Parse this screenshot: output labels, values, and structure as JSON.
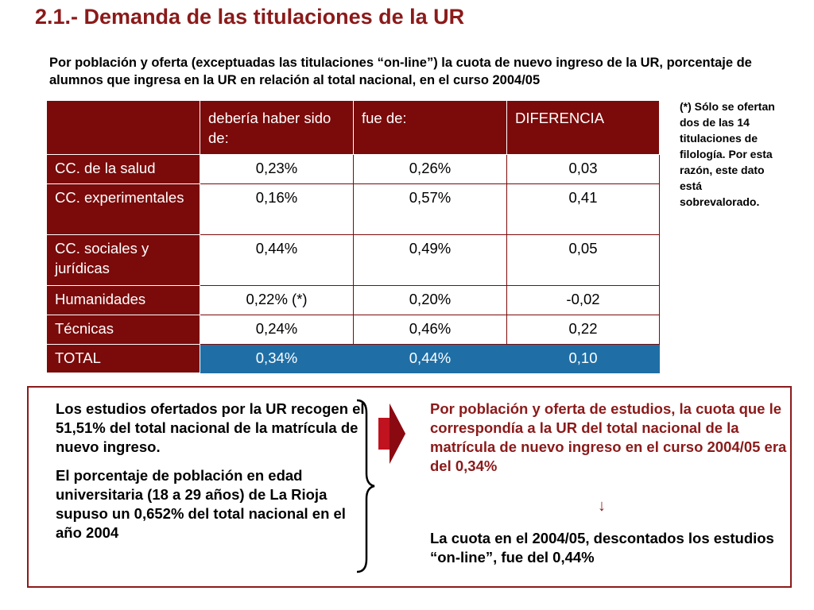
{
  "title": "2.1.- Demanda de las titulaciones de la UR",
  "intro": "Por población y oferta (exceptuadas las titulaciones “on-line”) la cuota de nuevo ingreso de la UR, porcentaje de alumnos que ingresa en la UR en relación al total nacional, en el curso 2004/05",
  "table": {
    "headers": [
      "",
      "debería haber sido de:",
      "fue de:",
      "DIFERENCIA"
    ],
    "rows": [
      {
        "label": "CC. de la salud",
        "deberia": "0,23%",
        "fue": "0,26%",
        "diferencia": "0,03"
      },
      {
        "label": "CC. experimentales",
        "deberia": "0,16%",
        "fue": "0,57%",
        "diferencia": "0,41"
      },
      {
        "label": "CC. sociales y jurídicas",
        "deberia": "0,44%",
        "fue": "0,49%",
        "diferencia": "0,05"
      },
      {
        "label": "Humanidades",
        "deberia": "0,22% (*)",
        "fue": "0,20%",
        "diferencia": "-0,02"
      },
      {
        "label": "Técnicas",
        "deberia": "0,24%",
        "fue": "0,46%",
        "diferencia": "0,22"
      },
      {
        "label": "TOTAL",
        "deberia": "0,34%",
        "fue": "0,44%",
        "diferencia": "0,10"
      }
    ]
  },
  "note": "(*) Sólo se ofertan dos de las 14 titulaciones de filología. Por esta razón, este dato está sobrevalorado.",
  "left": {
    "p1": "Los estudios ofertados por la UR recogen el 51,51% del total nacional de la matrícula de nuevo ingreso.",
    "p2": "El porcentaje de población en edad universitaria (18 a 29 años) de La Rioja supuso un 0,652% del total nacional en el año 2004"
  },
  "right": {
    "statement": "Por población y oferta de estudios, la cuota que le correspondía a la UR del total nacional de la matrícula de nuevo ingreso en el curso 2004/05 era del 0,34%",
    "arrow_glyph": "↓",
    "conclusion": "La cuota en el 2004/05, descontados los estudios “on-line”, fue del 0,44%"
  },
  "colors": {
    "header_red": "#7b0a0a",
    "title_red": "#8b1a1a",
    "total_blue": "#1f6fa6"
  }
}
